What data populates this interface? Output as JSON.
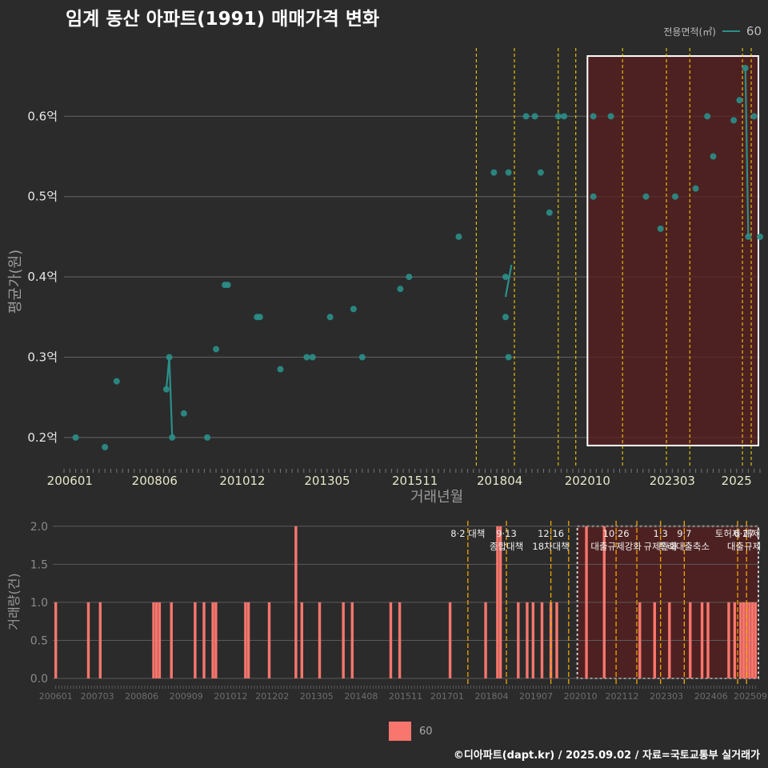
{
  "title": "임계 동산 아파트(1991) 매매가격 변화",
  "legend": {
    "title": "전용면적(㎡)",
    "series_name": "60"
  },
  "footer": "©디아파트(dapt.kr) / 2025.09.02 / 자료=국토교통부 실거래가",
  "colors": {
    "background": "#2b2b2b",
    "point": "#2a8f8a",
    "bar": "#f8766d",
    "event_line": "#ffd700",
    "highlight_fill": "#5a1f1f",
    "grid": "#5a5a5a"
  },
  "chart_data": [
    {
      "type": "scatter",
      "name": "price",
      "title": "임계 동산 아파트(1991) 매매가격 변화",
      "xlabel": "거래년월",
      "ylabel": "평균가(원)",
      "x_tick_labels": [
        "200601",
        "200806",
        "201012",
        "201305",
        "201511",
        "201804",
        "202010",
        "202303",
        "2025"
      ],
      "y_tick_labels": [
        "0.2억",
        "0.3억",
        "0.4억",
        "0.5억",
        "0.6억"
      ],
      "y_ticks": [
        0.2,
        0.3,
        0.4,
        0.5,
        0.6
      ],
      "xlim": [
        "2005-11",
        "2025-09"
      ],
      "ylim": [
        0.165,
        0.69
      ],
      "y_unit": "억",
      "grid": true,
      "legend_position": "top-right",
      "series": [
        {
          "name": "60",
          "points": [
            [
              "2006-03",
              0.2
            ],
            [
              "2007-01",
              0.188
            ],
            [
              "2007-05",
              0.27
            ],
            [
              "2008-10",
              0.26
            ],
            [
              "2008-11",
              0.3
            ],
            [
              "2008-12",
              0.2
            ],
            [
              "2009-04",
              0.23
            ],
            [
              "2009-12",
              0.2
            ],
            [
              "2010-03",
              0.31
            ],
            [
              "2010-06",
              0.39
            ],
            [
              "2010-07",
              0.39
            ],
            [
              "2011-05",
              0.35
            ],
            [
              "2011-06",
              0.35
            ],
            [
              "2012-01",
              0.285
            ],
            [
              "2012-10",
              0.3
            ],
            [
              "2012-12",
              0.3
            ],
            [
              "2013-06",
              0.35
            ],
            [
              "2014-02",
              0.36
            ],
            [
              "2014-05",
              0.3
            ],
            [
              "2015-06",
              0.385
            ],
            [
              "2015-09",
              0.4
            ],
            [
              "2017-02",
              0.45
            ],
            [
              "2018-02",
              0.53
            ],
            [
              "2018-06",
              0.35
            ],
            [
              "2018-06",
              0.4
            ],
            [
              "2018-07",
              0.53
            ],
            [
              "2018-07",
              0.3
            ],
            [
              "2019-01",
              0.6
            ],
            [
              "2019-04",
              0.6
            ],
            [
              "2019-06",
              0.53
            ],
            [
              "2019-09",
              0.48
            ],
            [
              "2019-12",
              0.6
            ],
            [
              "2020-02",
              0.6
            ],
            [
              "2020-12",
              0.6
            ],
            [
              "2020-12",
              0.5
            ],
            [
              "2021-06",
              0.6
            ],
            [
              "2022-06",
              0.5
            ],
            [
              "2022-11",
              0.46
            ],
            [
              "2023-04",
              0.5
            ],
            [
              "2023-11",
              0.51
            ],
            [
              "2024-03",
              0.6
            ],
            [
              "2024-05",
              0.55
            ],
            [
              "2024-12",
              0.595
            ],
            [
              "2025-02",
              0.62
            ],
            [
              "2025-04",
              0.66
            ],
            [
              "2025-05",
              0.45
            ],
            [
              "2025-07",
              0.6
            ],
            [
              "2025-09",
              0.45
            ]
          ],
          "lines": [
            [
              [
                "2008-10",
                0.26
              ],
              [
                "2008-11",
                0.3
              ],
              [
                "2008-12",
                0.2
              ]
            ],
            [
              [
                "2018-06",
                0.375
              ],
              [
                "2018-08",
                0.415
              ]
            ],
            [
              [
                "2025-04",
                0.66
              ],
              [
                "2025-05",
                0.45
              ]
            ]
          ]
        }
      ],
      "event_lines": [
        "2017-08",
        "2018-09",
        "2019-12",
        "2020-06",
        "2021-10",
        "2023-01",
        "2023-09",
        "2025-03",
        "2025-06"
      ],
      "highlight_range": [
        "2020-10",
        "2025-09"
      ]
    },
    {
      "type": "bar",
      "name": "volume",
      "ylabel": "거래량(건)",
      "x_tick_labels": [
        "200601",
        "200703",
        "200806",
        "200909",
        "201012",
        "201202",
        "201305",
        "201408",
        "201511",
        "201701",
        "201804",
        "201907",
        "202010",
        "202112",
        "202303",
        "202406",
        "202509"
      ],
      "y_tick_labels": [
        "0.0",
        "0.5",
        "1.0",
        "1.5",
        "2.0"
      ],
      "ylim": [
        0,
        2.05
      ],
      "grid": true,
      "series_name": "60",
      "bars": [
        [
          "2006-01",
          1
        ],
        [
          "2006-12",
          1
        ],
        [
          "2007-04",
          1
        ],
        [
          "2008-10",
          1
        ],
        [
          "2008-11",
          1
        ],
        [
          "2008-12",
          1
        ],
        [
          "2009-04",
          1
        ],
        [
          "2009-12",
          1
        ],
        [
          "2010-03",
          1
        ],
        [
          "2010-06",
          1
        ],
        [
          "2010-07",
          1
        ],
        [
          "2011-05",
          1
        ],
        [
          "2011-06",
          1
        ],
        [
          "2012-01",
          1
        ],
        [
          "2012-10",
          2
        ],
        [
          "2012-12",
          1
        ],
        [
          "2013-06",
          1
        ],
        [
          "2014-02",
          1
        ],
        [
          "2014-05",
          1
        ],
        [
          "2015-06",
          1
        ],
        [
          "2015-09",
          1
        ],
        [
          "2017-02",
          1
        ],
        [
          "2018-02",
          1
        ],
        [
          "2018-06",
          2
        ],
        [
          "2018-07",
          2
        ],
        [
          "2019-01",
          1
        ],
        [
          "2019-04",
          1
        ],
        [
          "2019-06",
          1
        ],
        [
          "2019-09",
          1
        ],
        [
          "2019-12",
          1
        ],
        [
          "2020-02",
          1
        ],
        [
          "2020-12",
          2
        ],
        [
          "2021-06",
          2
        ],
        [
          "2022-06",
          1
        ],
        [
          "2022-11",
          1
        ],
        [
          "2023-04",
          1
        ],
        [
          "2023-11",
          1
        ],
        [
          "2024-03",
          1
        ],
        [
          "2024-05",
          1
        ],
        [
          "2024-12",
          1
        ],
        [
          "2025-02",
          1
        ],
        [
          "2025-04",
          1
        ],
        [
          "2025-05",
          1
        ],
        [
          "2025-06",
          1
        ],
        [
          "2025-07",
          1
        ],
        [
          "2025-08",
          1
        ],
        [
          "2025-09",
          1
        ]
      ],
      "event_lines": [
        "2017-08",
        "2018-09",
        "2019-12",
        "2020-06",
        "2021-10",
        "2022-05",
        "2023-01",
        "2023-09",
        "2025-03",
        "2025-06"
      ],
      "highlight_range": [
        "2020-10",
        "2025-09"
      ],
      "annotations": [
        {
          "date": "2017-08",
          "text": "8·2 대책"
        },
        {
          "date": "2018-09",
          "text": "9·13\n종합대책"
        },
        {
          "date": "2019-12",
          "text": "12·16\n18차대책"
        },
        {
          "date": "2021-10",
          "text": "10·26\n대출규제강화"
        },
        {
          "date": "2023-01",
          "text": "1·3\n규제완화"
        },
        {
          "date": "2023-09",
          "text": "9·7\n특례대출축소"
        },
        {
          "date": "2025-03",
          "text": "토허제 해제"
        },
        {
          "date": "2025-06",
          "text": "6·27\n대출규제"
        }
      ]
    }
  ]
}
